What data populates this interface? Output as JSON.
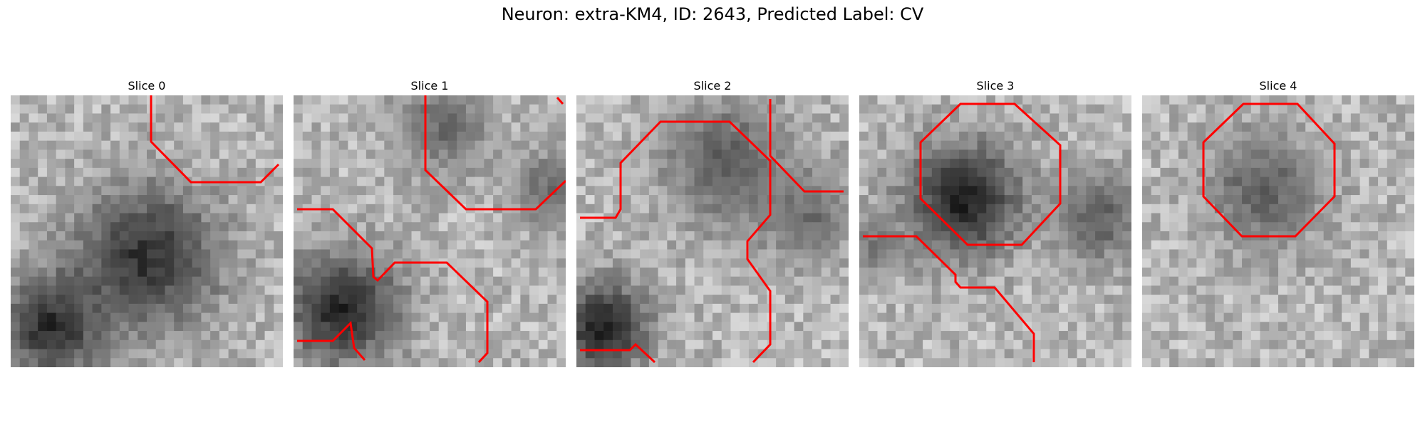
{
  "figure": {
    "title": "Neuron: extra-KM4, ID: 2643, Predicted Label: CV",
    "panels": [
      {
        "title": "Slice 0",
        "seed": 11
      },
      {
        "title": "Slice 1",
        "seed": 23
      },
      {
        "title": "Slice 2",
        "seed": 37
      },
      {
        "title": "Slice 3",
        "seed": 51
      },
      {
        "title": "Slice 4",
        "seed": 67
      }
    ],
    "image_grid": 30,
    "colormap": "gray",
    "contour_color": "#ff0000"
  }
}
